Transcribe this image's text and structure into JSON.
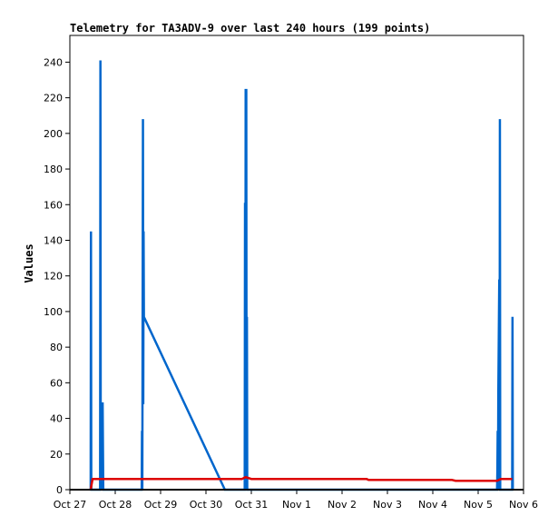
{
  "chart_data": {
    "type": "line",
    "title": "Telemetry for TA3ADV-9 over last 240 hours (199 points)",
    "xlabel": "",
    "ylabel": "Values",
    "xlim": [
      "2023-10-27",
      "2023-11-06"
    ],
    "ylim": [
      0,
      255
    ],
    "y_ticks": [
      0,
      20,
      40,
      60,
      80,
      100,
      120,
      140,
      160,
      180,
      200,
      220,
      240
    ],
    "x_ticks": [
      {
        "date": "2023-10-27",
        "label": "Oct 27"
      },
      {
        "date": "2023-10-28",
        "label": "Oct 28"
      },
      {
        "date": "2023-10-29",
        "label": "Oct 29"
      },
      {
        "date": "2023-10-30",
        "label": "Oct 30"
      },
      {
        "date": "2023-10-31",
        "label": "Oct 31"
      },
      {
        "date": "2023-11-01",
        "label": "Nov 1"
      },
      {
        "date": "2023-11-02",
        "label": "Nov 2"
      },
      {
        "date": "2023-11-03",
        "label": "Nov 3"
      },
      {
        "date": "2023-11-04",
        "label": "Nov 4"
      },
      {
        "date": "2023-11-05",
        "label": "Nov 5"
      },
      {
        "date": "2023-11-06",
        "label": "Nov 6"
      }
    ],
    "grid": false,
    "legend": "none",
    "series": [
      {
        "color": "#0066cc",
        "points": [
          [
            "2023-10-27T11:00",
            0
          ],
          [
            "2023-10-27T11:10",
            145
          ],
          [
            "2023-10-27T11:20",
            0
          ],
          [
            "2023-10-27T16:00",
            0
          ],
          [
            "2023-10-27T16:10",
            241
          ],
          [
            "2023-10-27T16:20",
            0
          ],
          [
            "2023-10-27T16:40",
            33
          ],
          [
            "2023-10-27T17:00",
            0
          ],
          [
            "2023-10-27T17:20",
            49
          ],
          [
            "2023-10-27T17:40",
            0
          ],
          [
            "2023-10-28T14:00",
            0
          ],
          [
            "2023-10-28T14:10",
            33
          ],
          [
            "2023-10-28T14:20",
            0
          ],
          [
            "2023-10-28T14:40",
            208
          ],
          [
            "2023-10-28T14:50",
            48
          ],
          [
            "2023-10-28T15:00",
            145
          ],
          [
            "2023-10-28T15:10",
            97
          ],
          [
            "2023-10-30T10:00",
            0
          ],
          [
            "2023-10-30T20:30",
            0
          ],
          [
            "2023-10-30T20:40",
            161
          ],
          [
            "2023-10-30T20:50",
            0
          ],
          [
            "2023-10-30T21:00",
            225
          ],
          [
            "2023-10-30T21:10",
            0
          ],
          [
            "2023-10-30T21:20",
            225
          ],
          [
            "2023-10-30T21:30",
            0
          ],
          [
            "2023-10-30T21:40",
            97
          ],
          [
            "2023-10-30T21:50",
            0
          ],
          [
            "2023-11-05T10:00",
            0
          ],
          [
            "2023-11-05T10:10",
            10
          ],
          [
            "2023-11-05T10:20",
            33
          ],
          [
            "2023-11-05T10:30",
            0
          ],
          [
            "2023-11-05T10:40",
            54
          ],
          [
            "2023-11-05T10:50",
            75
          ],
          [
            "2023-11-05T11:00",
            97
          ],
          [
            "2023-11-05T11:10",
            118
          ],
          [
            "2023-11-05T11:20",
            0
          ],
          [
            "2023-11-05T11:30",
            208
          ],
          [
            "2023-11-05T11:40",
            0
          ],
          [
            "2023-11-05T18:00",
            0
          ],
          [
            "2023-11-05T18:10",
            97
          ],
          [
            "2023-11-05T18:20",
            0
          ]
        ]
      },
      {
        "color": "#dd0000",
        "points": [
          [
            "2023-10-27T11:00",
            0
          ],
          [
            "2023-10-27T12:00",
            6
          ],
          [
            "2023-10-30T19:00",
            6
          ],
          [
            "2023-10-30T21:00",
            7
          ],
          [
            "2023-10-31T00:00",
            6
          ],
          [
            "2023-11-02T13:00",
            6
          ],
          [
            "2023-11-02T14:00",
            5.5
          ],
          [
            "2023-11-04T10:00",
            5.5
          ],
          [
            "2023-11-04T12:00",
            5
          ],
          [
            "2023-11-05T10:00",
            5
          ],
          [
            "2023-11-05T12:00",
            6
          ],
          [
            "2023-11-05T18:00",
            6
          ]
        ]
      }
    ]
  }
}
